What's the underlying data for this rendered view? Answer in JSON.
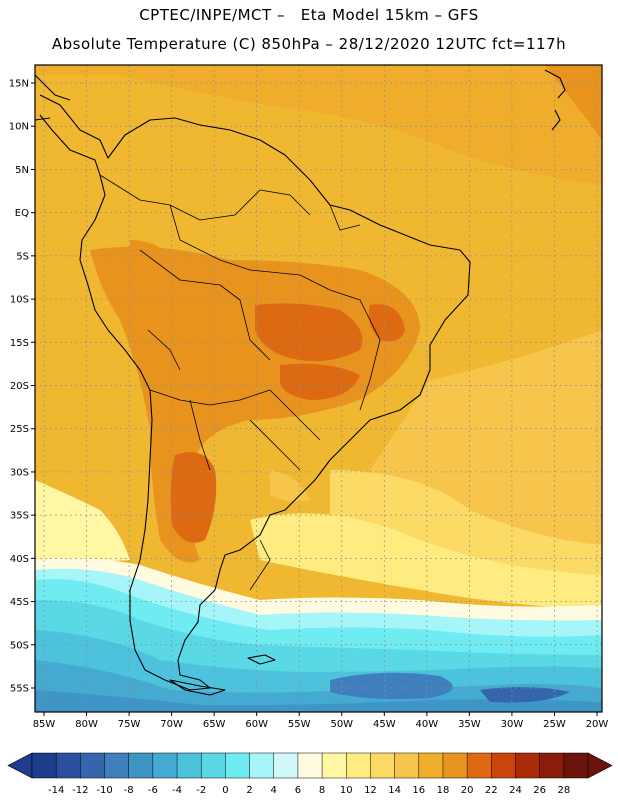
{
  "header": {
    "line1": "CPTEC/INPE/MCT –   Eta Model 15km – GFS",
    "line2": "Absolute Temperature (C) 850hPa – 28/12/2020 12UTC fct=117h"
  },
  "map": {
    "lat_labels": [
      "15N",
      "10N",
      "5N",
      "EQ",
      "5S",
      "10S",
      "15S",
      "20S",
      "25S",
      "30S",
      "35S",
      "40S",
      "45S",
      "50S",
      "55S"
    ],
    "lon_labels": [
      "85W",
      "80W",
      "75W",
      "70W",
      "65W",
      "60W",
      "55W",
      "50W",
      "45W",
      "40W",
      "35W",
      "30W",
      "25W",
      "20W"
    ]
  },
  "colorbar": {
    "labels": [
      "-14",
      "-12",
      "-10",
      "-8",
      "-6",
      "-4",
      "-2",
      "0",
      "2",
      "4",
      "6",
      "8",
      "10",
      "12",
      "14",
      "16",
      "18",
      "20",
      "22",
      "24",
      "26",
      "28"
    ],
    "colors": [
      "#1e3c8c",
      "#2a4f9f",
      "#3566ad",
      "#3f7fbd",
      "#3f95c6",
      "#44aad2",
      "#4dc2dc",
      "#5ad8e6",
      "#6fecf2",
      "#a6f5f8",
      "#d2f8fb",
      "#fffbe0",
      "#fff7a4",
      "#ffec80",
      "#fcda66",
      "#f7c54c",
      "#f0ad2c",
      "#e8931e",
      "#dd6a12",
      "#c9450c",
      "#aa2b08",
      "#8a1c0a",
      "#6c130b"
    ]
  }
}
